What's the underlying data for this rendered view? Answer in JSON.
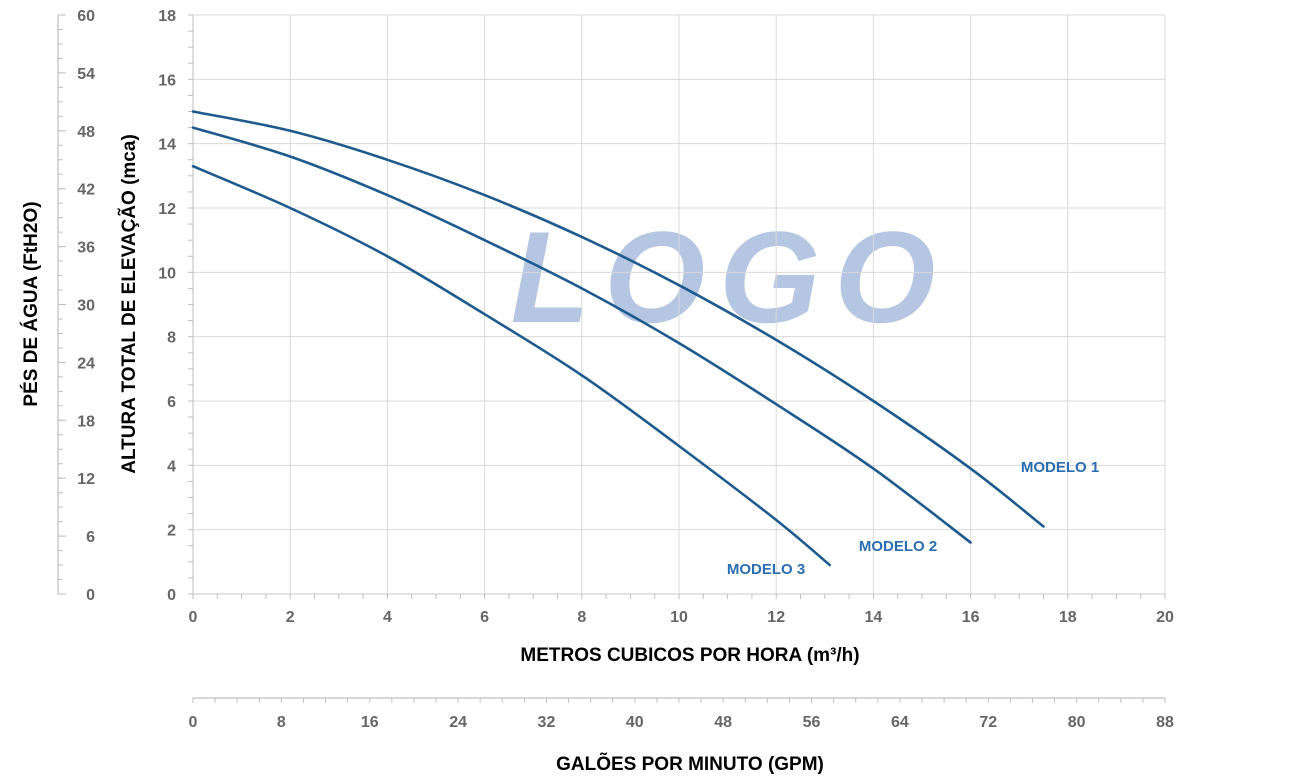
{
  "chart_data": {
    "type": "line",
    "watermark": "LOGO",
    "xlabel": "METROS CUBICOS POR HORA (m³/h)",
    "xlim": [
      0,
      20
    ],
    "x_ticks": [
      0,
      2,
      4,
      6,
      8,
      10,
      12,
      14,
      16,
      18,
      20
    ],
    "ylabel": "ALTURA TOTAL DE ELEVAÇÃO (mca)",
    "ylim": [
      0,
      18
    ],
    "y_ticks": [
      0,
      2,
      4,
      6,
      8,
      10,
      12,
      14,
      16,
      18
    ],
    "secondary_ylabel": "PÉS DE ÁGUA (FtH2O)",
    "secondary_ylim": [
      0,
      60
    ],
    "secondary_y_ticks": [
      0,
      6,
      12,
      18,
      24,
      30,
      36,
      42,
      48,
      54,
      60
    ],
    "secondary_xlabel": "GALÕES POR MINUTO (GPM)",
    "secondary_xlim": [
      0,
      88
    ],
    "secondary_x_ticks": [
      0,
      8,
      16,
      24,
      32,
      40,
      48,
      56,
      64,
      72,
      80,
      88
    ],
    "grid": true,
    "colors": {
      "series": "#1f5a8e",
      "label": "#2a6db0",
      "grid": "#d9d9d9",
      "tick": "#666666",
      "watermark": "#b4c6e2"
    },
    "series": [
      {
        "name": "MODELO 1",
        "x": [
          0,
          2,
          4,
          6,
          8,
          10,
          12,
          14,
          16,
          17.5
        ],
        "y": [
          15.0,
          14.4,
          13.5,
          12.4,
          11.1,
          9.6,
          7.9,
          6.0,
          3.9,
          2.1
        ]
      },
      {
        "name": "MODELO 2",
        "x": [
          0,
          2,
          4,
          6,
          8,
          10,
          12,
          14,
          16
        ],
        "y": [
          14.5,
          13.6,
          12.4,
          11.0,
          9.5,
          7.8,
          5.9,
          3.9,
          1.6
        ]
      },
      {
        "name": "MODELO 3",
        "x": [
          0,
          2,
          4,
          6,
          8,
          10,
          12,
          13.1
        ],
        "y": [
          13.3,
          12.0,
          10.5,
          8.7,
          6.8,
          4.6,
          2.3,
          0.9
        ]
      }
    ]
  }
}
